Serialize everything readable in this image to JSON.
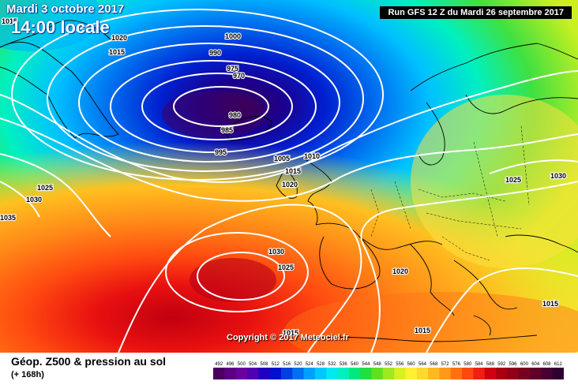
{
  "header": {
    "date": "Mardi 3 octobre 2017",
    "time": "14:00 locale",
    "run": "Run GFS 12 Z du Mardi 26 septembre 2017"
  },
  "copyright": "Copyright © 2017 Meteociel.fr",
  "footer": {
    "title": "Géop. Z500 & pression au sol",
    "subtitle": "(+ 168h)"
  },
  "legend": {
    "ticks": [
      "492",
      "496",
      "500",
      "504",
      "508",
      "512",
      "516",
      "520",
      "524",
      "528",
      "532",
      "536",
      "540",
      "544",
      "548",
      "552",
      "556",
      "560",
      "564",
      "568",
      "572",
      "576",
      "580",
      "584",
      "588",
      "592",
      "596",
      "600",
      "604",
      "608",
      "612"
    ],
    "colors": [
      "#4a0060",
      "#5a0080",
      "#6a00a0",
      "#5000b0",
      "#2000c0",
      "#0010d0",
      "#0040e0",
      "#0070f0",
      "#00a0ff",
      "#00c8ff",
      "#00e8f0",
      "#00f0c0",
      "#00e880",
      "#20e040",
      "#60e020",
      "#a0e820",
      "#d8f020",
      "#fff030",
      "#ffd830",
      "#ffb820",
      "#ff9818",
      "#ff7010",
      "#ff4810",
      "#f02010",
      "#d00010",
      "#a80010",
      "#900018",
      "#780020",
      "#600028",
      "#480030",
      "#300030"
    ]
  },
  "isobars": [
    {
      "label": "1000"
    },
    {
      "label": "990"
    },
    {
      "label": "975"
    },
    {
      "label": "970"
    },
    {
      "label": "980"
    },
    {
      "label": "985"
    },
    {
      "label": "995"
    },
    {
      "label": "1005"
    },
    {
      "label": "1010"
    },
    {
      "label": "1015"
    },
    {
      "label": "1020"
    },
    {
      "label": "1025"
    },
    {
      "label": "1030"
    },
    {
      "label": "1035"
    },
    {
      "label": "1015"
    },
    {
      "label": "1020"
    },
    {
      "label": "1025"
    },
    {
      "label": "1030"
    },
    {
      "label": "1020"
    },
    {
      "label": "1015"
    },
    {
      "label": "1015"
    },
    {
      "label": "1025"
    },
    {
      "label": "1030"
    },
    {
      "label": "1015"
    },
    {
      "label": "1015"
    }
  ]
}
